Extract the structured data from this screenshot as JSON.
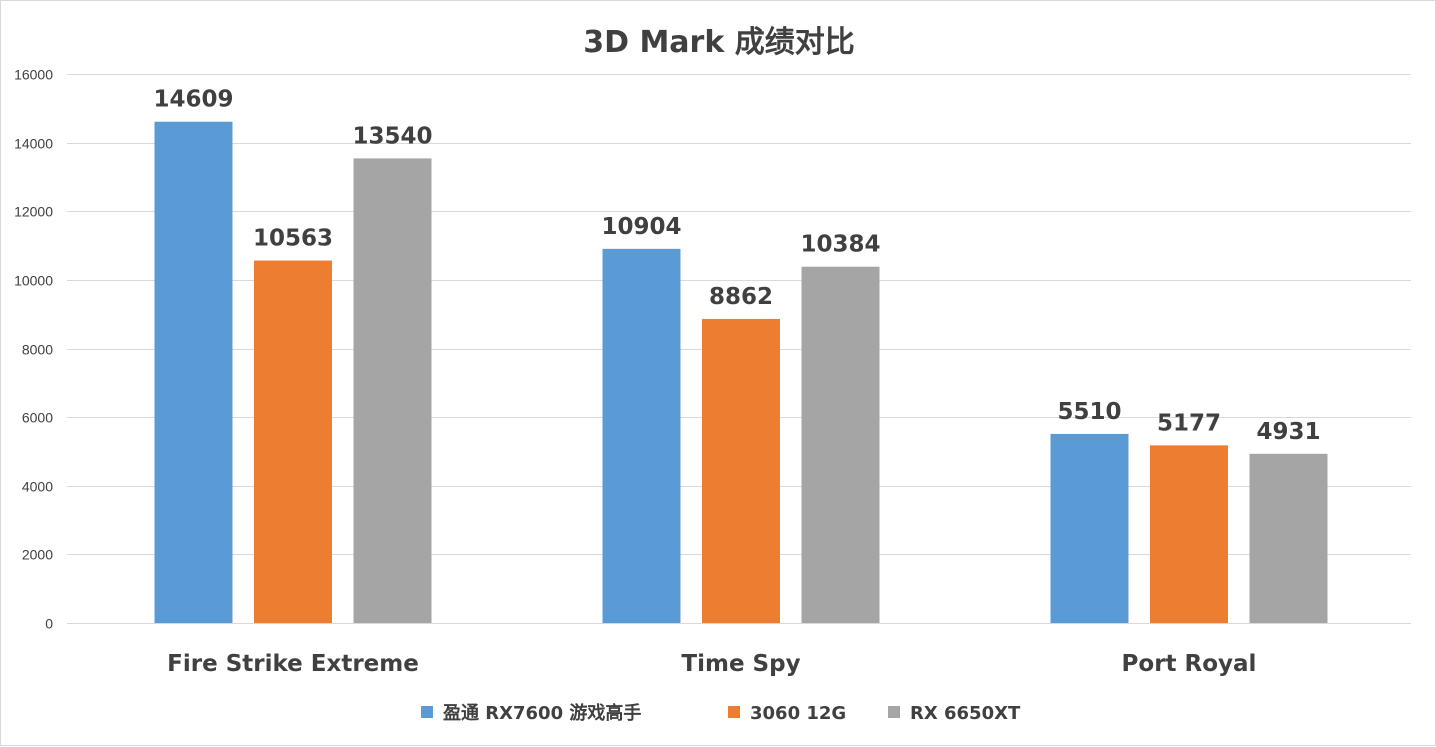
{
  "chart_data": {
    "type": "bar",
    "title": "3D Mark 成绩对比",
    "categories": [
      "Fire Strike Extreme",
      "Time Spy",
      "Port Royal"
    ],
    "series": [
      {
        "name": "盈通 RX7600 游戏高手",
        "color": "#5b9bd5",
        "values": [
          14609,
          10904,
          5510
        ]
      },
      {
        "name": "3060 12G",
        "color": "#ed7d31",
        "values": [
          10563,
          8862,
          5177
        ]
      },
      {
        "name": "RX 6650XT",
        "color": "#a5a5a5",
        "values": [
          13540,
          10384,
          4931
        ]
      }
    ],
    "ylim": [
      0,
      16000
    ],
    "yticks": [
      0,
      2000,
      4000,
      6000,
      8000,
      10000,
      12000,
      14000,
      16000
    ],
    "grid": true,
    "legend_position": "bottom",
    "data_labels": true,
    "text_color": "#404040",
    "grid_color": "#d9d9d9"
  }
}
